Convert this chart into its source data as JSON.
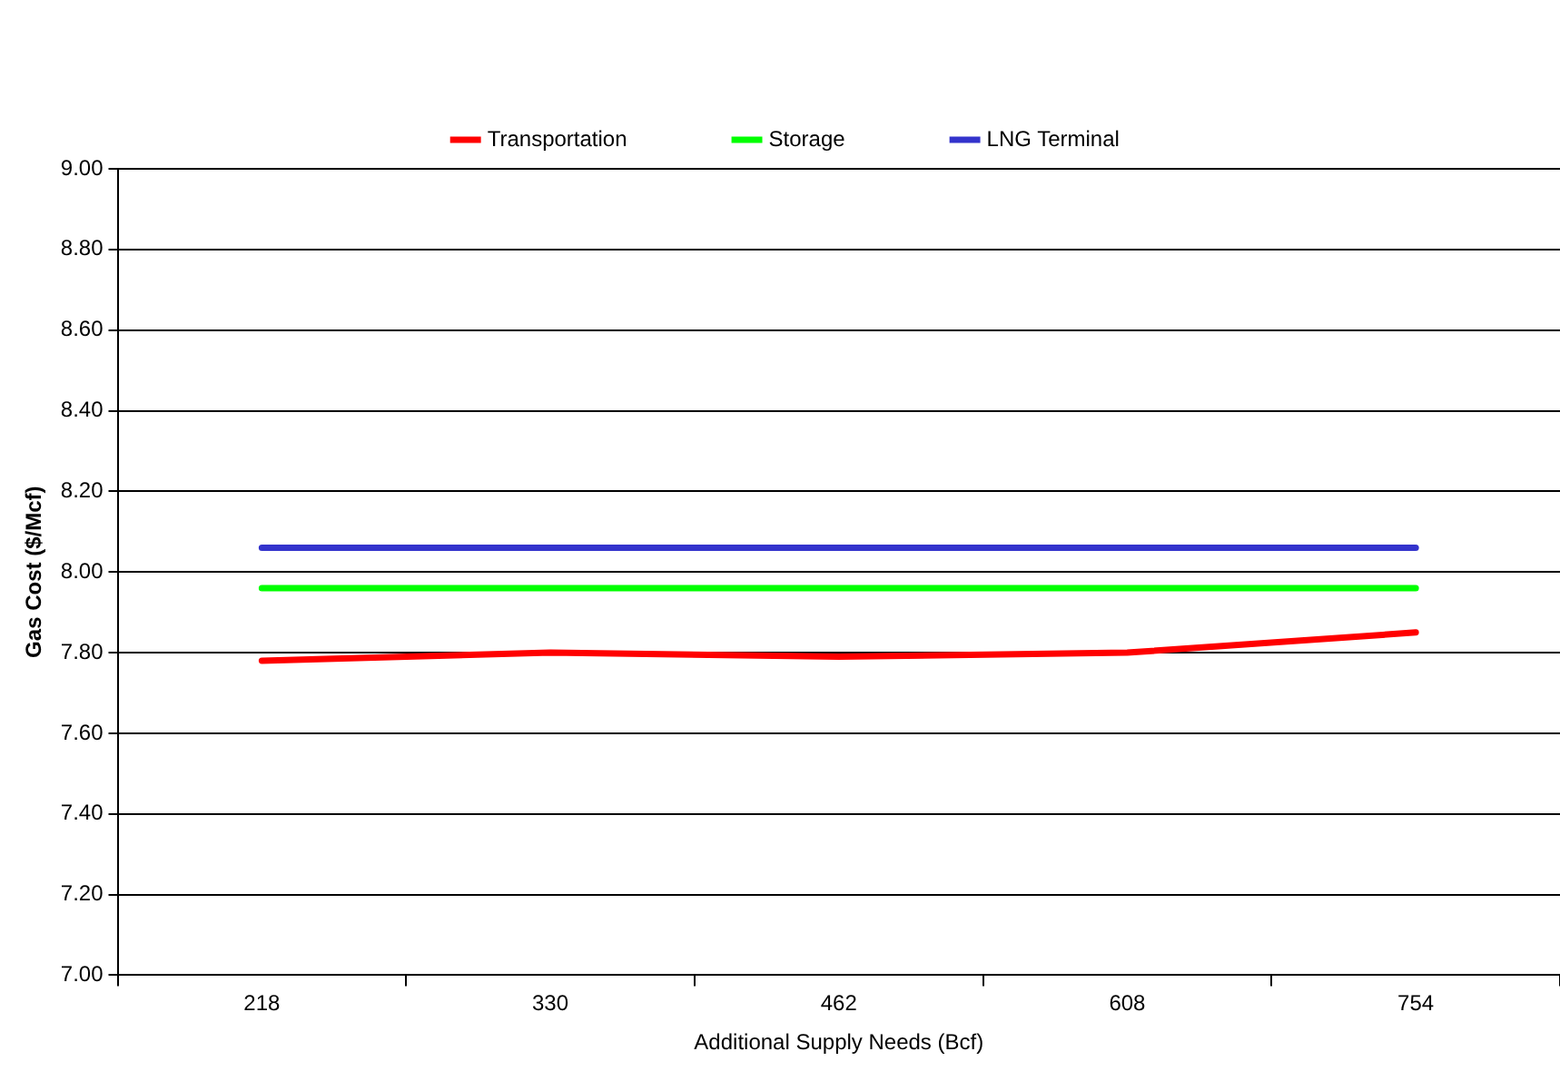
{
  "chart_data": {
    "type": "line",
    "xlabel": "Additional Supply Needs (Bcf)",
    "ylabel": "Gas Cost ($/Mcf)",
    "categories": [
      "218",
      "330",
      "462",
      "608",
      "754"
    ],
    "series": [
      {
        "name": "Transportation",
        "color": "#ff0000",
        "values": [
          7.78,
          7.8,
          7.79,
          7.8,
          7.85
        ]
      },
      {
        "name": "Storage",
        "color": "#00ff00",
        "values": [
          7.96,
          7.96,
          7.96,
          7.96,
          7.96
        ]
      },
      {
        "name": "LNG Terminal",
        "color": "#3333cc",
        "values": [
          8.06,
          8.06,
          8.06,
          8.06,
          8.06
        ]
      }
    ],
    "ylim": [
      7,
      9
    ],
    "yticks": [
      {
        "value": 7,
        "label": "7.00"
      },
      {
        "value": 7.2,
        "label": "7.20"
      },
      {
        "value": 7.4,
        "label": "7.40"
      },
      {
        "value": 7.6,
        "label": "7.60"
      },
      {
        "value": 7.8,
        "label": "7.80"
      },
      {
        "value": 8,
        "label": "8.00"
      },
      {
        "value": 8.2,
        "label": "8.20"
      },
      {
        "value": 8.4,
        "label": "8.40"
      },
      {
        "value": 8.6,
        "label": "8.60"
      },
      {
        "value": 8.8,
        "label": "8.80"
      },
      {
        "value": 9,
        "label": "9.00"
      }
    ],
    "grid": "y",
    "legend": "top",
    "marker": "none",
    "line_style": "solid"
  }
}
